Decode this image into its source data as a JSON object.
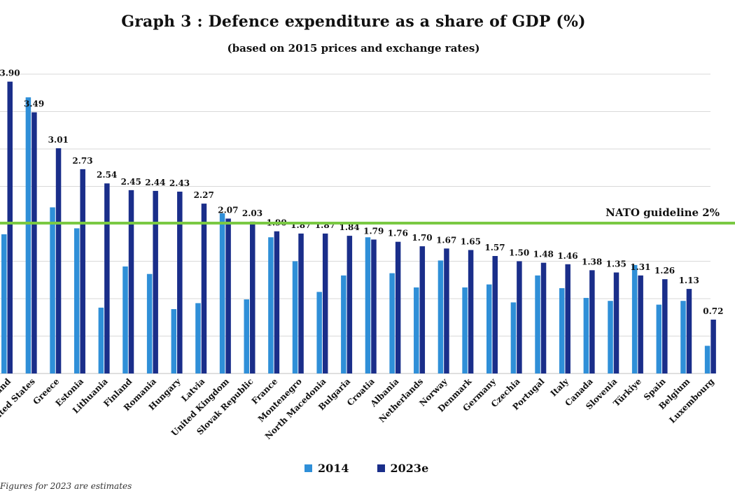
{
  "chart_data": {
    "type": "bar",
    "title": "Graph 3 : Defence expenditure as a share of GDP (%)",
    "subtitle": "(based on 2015 prices and exchange rates)",
    "categories": [
      "Poland",
      "United States",
      "Greece",
      "Estonia",
      "Lithuania",
      "Finland",
      "Romania",
      "Hungary",
      "Latvia",
      "United Kingdom",
      "Slovak Republic",
      "France",
      "Montenegro",
      "North Macedonia",
      "Bulgaria",
      "Croatia",
      "Albania",
      "Netherlands",
      "Norway",
      "Denmark",
      "Germany",
      "Czechia",
      "Portugal",
      "Italy",
      "Canada",
      "Slovenia",
      "Türkiye",
      "Spain",
      "Belgium",
      "Luxembourg"
    ],
    "category_labels": [
      "and",
      "ited States",
      "Greece",
      "Estonia",
      "Lithuania",
      "Finland",
      "Romania",
      "Hungary",
      "Latvia",
      "United Kingdom",
      "Slovak Republic",
      "France",
      "Montenegro",
      "North Macedonia",
      "Bulgaria",
      "Croatia",
      "Albania",
      "Netherlands",
      "Norway",
      "Denmark",
      "Germany",
      "Czechia",
      "Portugal",
      "Italy",
      "Canada",
      "Slovenia",
      "Türkiye",
      "Spain",
      "Belgium",
      "Luxembourg"
    ],
    "series": [
      {
        "name": "2014",
        "color": "#2f8fd8",
        "values": [
          1.86,
          3.69,
          2.22,
          1.94,
          0.88,
          1.43,
          1.33,
          0.86,
          0.94,
          2.14,
          0.99,
          1.82,
          1.5,
          1.09,
          1.31,
          1.82,
          1.34,
          1.15,
          1.51,
          1.15,
          1.19,
          0.95,
          1.31,
          1.14,
          1.01,
          0.97,
          1.45,
          0.92,
          0.97,
          0.37
        ]
      },
      {
        "name": "2023e",
        "color": "#1a2e8a",
        "values": [
          3.9,
          3.49,
          3.01,
          2.73,
          2.54,
          2.45,
          2.44,
          2.43,
          2.27,
          2.07,
          2.03,
          1.9,
          1.87,
          1.87,
          1.84,
          1.79,
          1.76,
          1.7,
          1.67,
          1.65,
          1.57,
          1.5,
          1.48,
          1.46,
          1.38,
          1.35,
          1.31,
          1.26,
          1.13,
          0.72
        ]
      }
    ],
    "data_labels": [
      "3.90",
      "3.49",
      "3.01",
      "2.73",
      "2.54",
      "2.45",
      "2.44",
      "2.43",
      "2.27",
      "2.07",
      "2.03",
      "1.90",
      "1.87",
      "1.87",
      "1.84",
      "1.79",
      "1.76",
      "1.70",
      "1.67",
      "1.65",
      "1.57",
      "1.50",
      "1.48",
      "1.46",
      "1.38",
      "1.35",
      "1.31",
      "1.26",
      "1.13",
      "0.72"
    ],
    "ylim": [
      0,
      4
    ],
    "grid": true,
    "reference_line": {
      "value": 2.0,
      "label": "NATO guideline 2%",
      "color": "#7ac943"
    },
    "legend_position": "bottom"
  },
  "footnote": "Figures for 2023 are estimates"
}
